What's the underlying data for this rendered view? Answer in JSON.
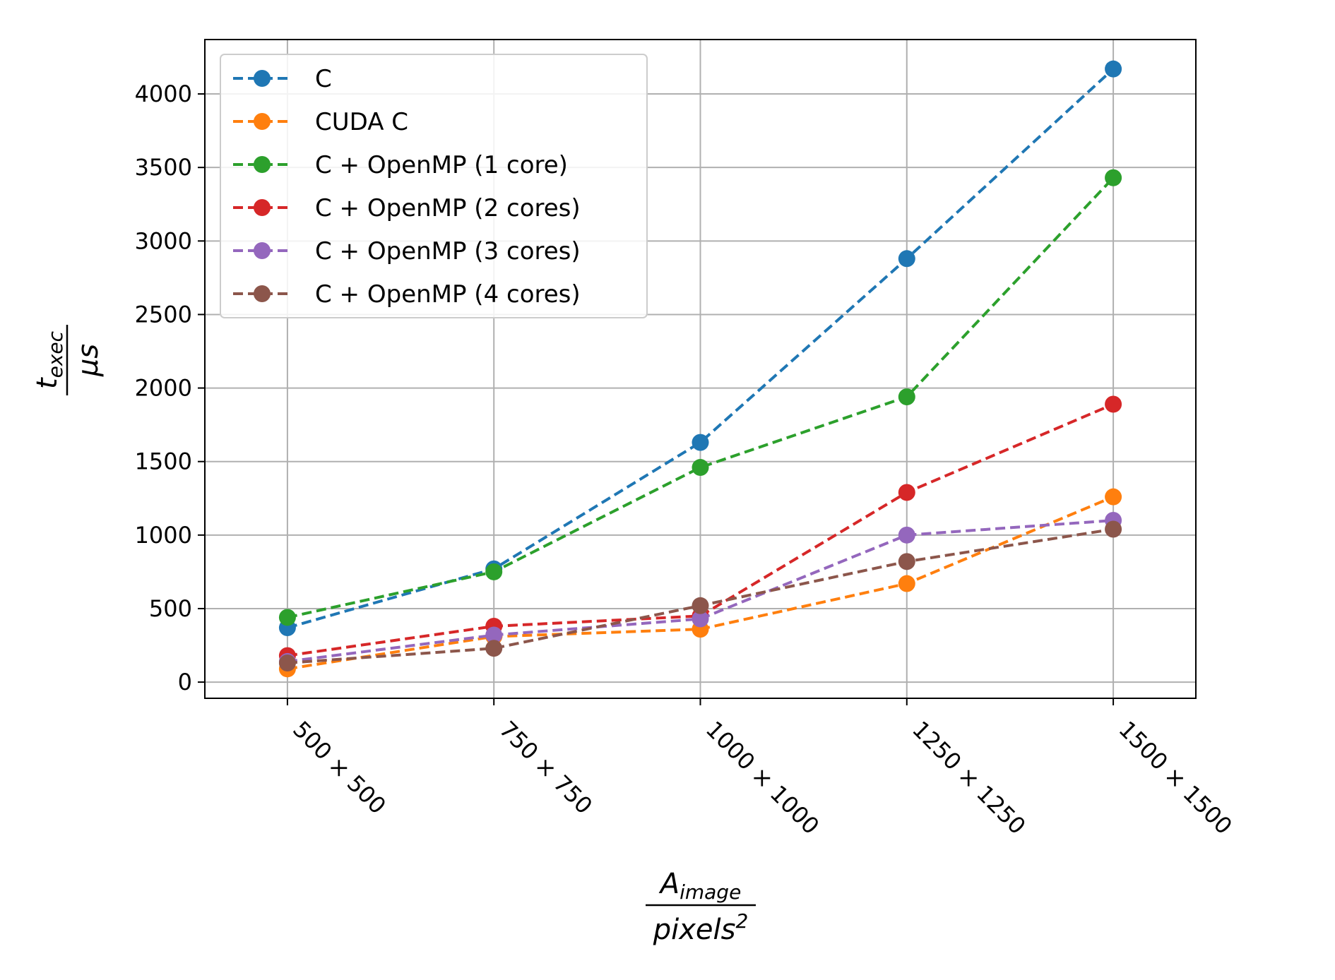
{
  "chart_data": {
    "type": "line",
    "categories": [
      "500 × 500",
      "750 × 750",
      "1000 × 1000",
      "1250 × 1250",
      "1500 × 1500"
    ],
    "x": [
      500,
      750,
      1000,
      1250,
      1500
    ],
    "series": [
      {
        "name": "C",
        "color": "#1f77b4",
        "values": [
          370,
          770,
          1630,
          2880,
          4170
        ]
      },
      {
        "name": "CUDA C",
        "color": "#ff7f0e",
        "values": [
          90,
          310,
          360,
          670,
          1260
        ]
      },
      {
        "name": "C + OpenMP (1 core)",
        "color": "#2ca02c",
        "values": [
          440,
          750,
          1460,
          1940,
          3430
        ]
      },
      {
        "name": "C + OpenMP (2 cores)",
        "color": "#d62728",
        "values": [
          180,
          380,
          450,
          1290,
          1890
        ]
      },
      {
        "name": "C + OpenMP (3 cores)",
        "color": "#9467bd",
        "values": [
          140,
          320,
          430,
          1000,
          1100
        ]
      },
      {
        "name": "C + OpenMP (4 cores)",
        "color": "#8c564b",
        "values": [
          130,
          230,
          520,
          820,
          1040
        ]
      }
    ],
    "yticks": [
      "0",
      "500",
      "1000",
      "1500",
      "2000",
      "2500",
      "3000",
      "3500",
      "4000"
    ],
    "ylim": [
      -110,
      4370
    ],
    "xlim": [
      400,
      1600
    ],
    "xlabel": {
      "numerator": "A",
      "numerator_sub": "image",
      "denominator": "pixels",
      "denominator_sup": "2"
    },
    "ylabel": {
      "numerator": "t",
      "numerator_sub": "exec",
      "denominator": "μs"
    },
    "grid": true,
    "legend_position": "top-left",
    "line_style": "dashed",
    "marker": "circle"
  }
}
